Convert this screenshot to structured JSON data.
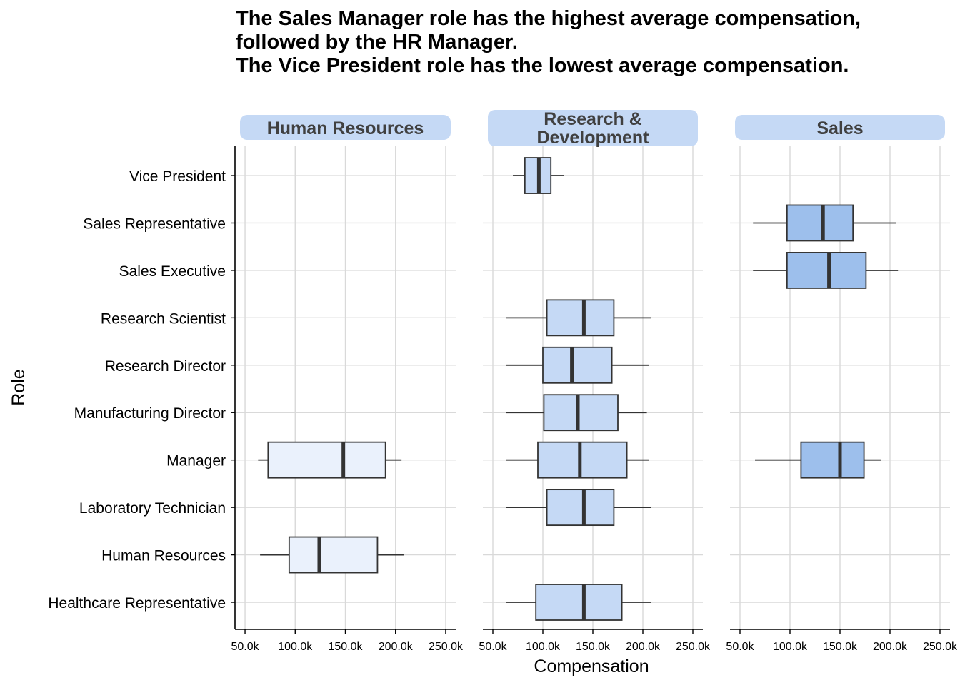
{
  "title_lines": [
    "The Sales Manager role has the highest average compensation,",
    "followed by the HR Manager.",
    "The Vice President role has the lowest average compensation."
  ],
  "colors": {
    "Human Resources": "#eaf1fc",
    "Research & Development": "#c5d9f5",
    "Sales": "#9dbfec",
    "strip": "#c5d9f5",
    "grid": "#d9d9d9",
    "outline": "#333333"
  },
  "chart_data": {
    "type": "boxplot",
    "orientation": "horizontal",
    "xlabel": "Compensation",
    "ylabel": "Role",
    "xlim": [
      40000,
      260000
    ],
    "xticks": [
      50000,
      100000,
      150000,
      200000,
      250000
    ],
    "xtick_labels": [
      "50.0k",
      "100.0k",
      "150.0k",
      "200.0k",
      "250.0k"
    ],
    "grid": true,
    "roles": [
      "Healthcare Representative",
      "Human Resources",
      "Laboratory Technician",
      "Manager",
      "Manufacturing Director",
      "Research Director",
      "Research Scientist",
      "Sales Executive",
      "Sales Representative",
      "Vice President"
    ],
    "facets": [
      {
        "label_lines": [
          "Human Resources"
        ],
        "boxes": [
          {
            "role": "Manager",
            "min": 63000,
            "q1": 73000,
            "median": 148000,
            "q3": 190000,
            "max": 206000
          },
          {
            "role": "Human Resources",
            "min": 65000,
            "q1": 94000,
            "median": 124000,
            "q3": 182000,
            "max": 208000
          }
        ]
      },
      {
        "label_lines": [
          "Research &",
          "Development"
        ],
        "boxes": [
          {
            "role": "Vice President",
            "min": 70000,
            "q1": 82000,
            "median": 96000,
            "q3": 108000,
            "max": 121000
          },
          {
            "role": "Research Scientist",
            "min": 63000,
            "q1": 104000,
            "median": 141000,
            "q3": 171000,
            "max": 208000
          },
          {
            "role": "Research Director",
            "min": 63000,
            "q1": 100000,
            "median": 129000,
            "q3": 169000,
            "max": 206000
          },
          {
            "role": "Manufacturing Director",
            "min": 63000,
            "q1": 101000,
            "median": 135000,
            "q3": 175000,
            "max": 204000
          },
          {
            "role": "Manager",
            "min": 63000,
            "q1": 95000,
            "median": 137000,
            "q3": 184000,
            "max": 206000
          },
          {
            "role": "Laboratory Technician",
            "min": 63000,
            "q1": 104000,
            "median": 141000,
            "q3": 171000,
            "max": 208000
          },
          {
            "role": "Healthcare Representative",
            "min": 63000,
            "q1": 93000,
            "median": 141000,
            "q3": 179000,
            "max": 208000
          }
        ]
      },
      {
        "label_lines": [
          "Sales"
        ],
        "boxes": [
          {
            "role": "Sales Representative",
            "min": 63000,
            "q1": 97000,
            "median": 133000,
            "q3": 163000,
            "max": 206000
          },
          {
            "role": "Sales Executive",
            "min": 63000,
            "q1": 97000,
            "median": 139000,
            "q3": 176000,
            "max": 208000
          },
          {
            "role": "Manager",
            "min": 65000,
            "q1": 111000,
            "median": 150000,
            "q3": 174000,
            "max": 191000
          }
        ]
      }
    ]
  }
}
